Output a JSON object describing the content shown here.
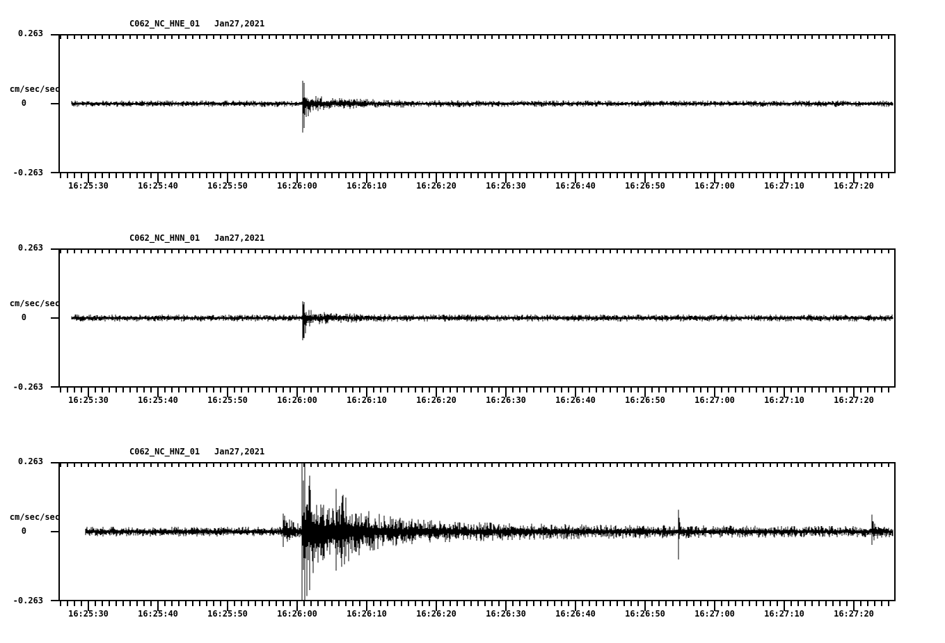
{
  "app": {
    "background": "#ffffff",
    "foreground": "#000000",
    "description": "Three-component strong-motion seismogram display, station C062 network NC, Jan 27 2021"
  },
  "chart_data": [
    {
      "type": "line",
      "title": "C062_NC_HNE_01    Jan27,2021",
      "station": "C062_NC_HNE_01",
      "date": "Jan27,2021",
      "ylabel": "cm/sec/sec",
      "ylim": [
        -0.263,
        0.263
      ],
      "ytick_labels": [
        "0.263",
        "0",
        "-0.263"
      ],
      "xtick_labels": [
        "16:25:30",
        "16:25:40",
        "16:25:50",
        "16:26:00",
        "16:26:10",
        "16:26:20",
        "16:26:30",
        "16:26:40",
        "16:26:50",
        "16:27:00",
        "16:27:10",
        "16:27:20"
      ],
      "x_start_label": "16:25:26",
      "x_span_seconds": 120,
      "major_tick_seconds": 10,
      "minor_tick_seconds": 1,
      "grid": false,
      "legend": "none",
      "noise_amp": 0.0115,
      "trace_start_s": 1.8,
      "seed": 7,
      "events": [
        {
          "t": 35.0,
          "up": 0.075,
          "dn": 0.097,
          "tau": 0.4
        },
        {
          "t": 35.2,
          "up": 0.022,
          "dn": 0.022,
          "tau": 6
        }
      ]
    },
    {
      "type": "line",
      "title": "C062_NC_HNN_01    Jan27,2021",
      "station": "C062_NC_HNN_01",
      "date": "Jan27,2021",
      "ylabel": "cm/sec/sec",
      "ylim": [
        -0.263,
        0.263
      ],
      "ytick_labels": [
        "0.263",
        "0",
        "-0.263"
      ],
      "xtick_labels": [
        "16:25:30",
        "16:25:40",
        "16:25:50",
        "16:26:00",
        "16:26:10",
        "16:26:20",
        "16:26:30",
        "16:26:40",
        "16:26:50",
        "16:27:00",
        "16:27:10",
        "16:27:20"
      ],
      "x_start_label": "16:25:26",
      "x_span_seconds": 120,
      "major_tick_seconds": 10,
      "minor_tick_seconds": 1,
      "grid": false,
      "legend": "none",
      "noise_amp": 0.0125,
      "trace_start_s": 1.8,
      "seed": 13,
      "events": [
        {
          "t": 35.0,
          "up": 0.05,
          "dn": 0.072,
          "tau": 0.5
        },
        {
          "t": 35.2,
          "up": 0.015,
          "dn": 0.015,
          "tau": 5
        }
      ]
    },
    {
      "type": "line",
      "title": "C062_NC_HNZ_01    Jan27,2021",
      "station": "C062_NC_HNZ_01",
      "date": "Jan27,2021",
      "ylabel": "cm/sec/sec",
      "ylim": [
        -0.263,
        0.263
      ],
      "ytick_labels": [
        "0.263",
        "0",
        "-0.263"
      ],
      "xtick_labels": [
        "16:25:30",
        "16:25:40",
        "16:25:50",
        "16:26:00",
        "16:26:10",
        "16:26:20",
        "16:26:30",
        "16:26:40",
        "16:26:50",
        "16:27:00",
        "16:27:10",
        "16:27:20"
      ],
      "x_start_label": "16:25:26",
      "x_span_seconds": 120,
      "major_tick_seconds": 10,
      "minor_tick_seconds": 1,
      "grid": false,
      "legend": "none",
      "noise_amp": 0.018,
      "trace_start_s": 3.8,
      "seed": 5,
      "events": [
        {
          "t": 32.2,
          "up": 0.05,
          "dn": 0.04,
          "tau": 1.5
        },
        {
          "t": 34.9,
          "up": 0.24,
          "dn": 0.27,
          "tau": 1.0
        },
        {
          "t": 35.3,
          "up": 0.08,
          "dn": 0.08,
          "tau": 5
        },
        {
          "t": 36.0,
          "up": 0.04,
          "dn": 0.04,
          "tau": 25
        },
        {
          "t": 39.8,
          "up": 0.075,
          "dn": 0.06,
          "tau": 3
        },
        {
          "t": 89.0,
          "up": 0.06,
          "dn": 0.082,
          "tau": 0.25
        },
        {
          "t": 116.8,
          "up": 0.045,
          "dn": 0.03,
          "tau": 0.5
        }
      ]
    }
  ]
}
